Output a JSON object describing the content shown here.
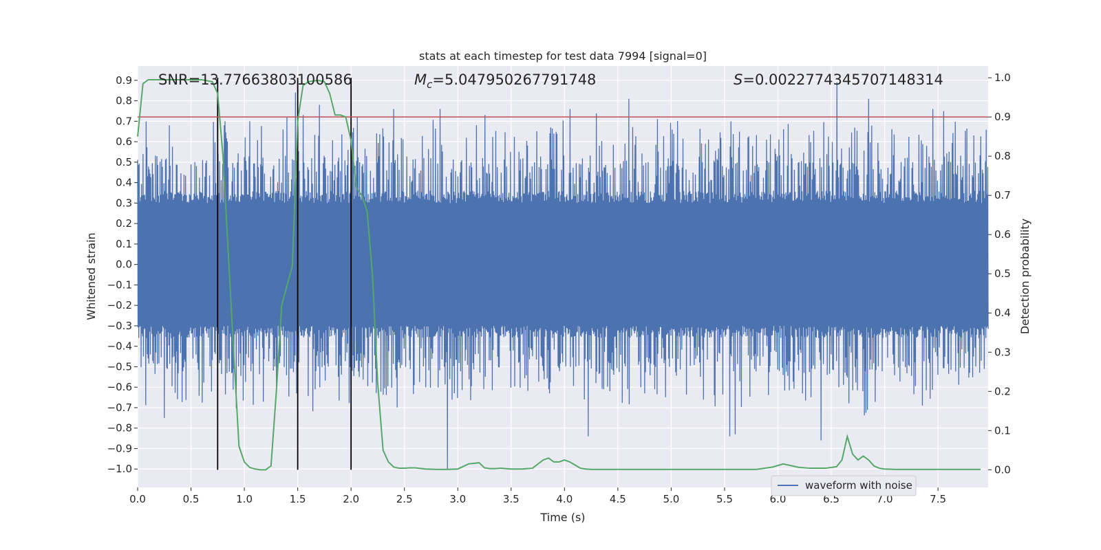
{
  "chart_data": {
    "type": "line",
    "title": "stats at each timestep for test data 7994 [signal=0]",
    "xlabel": "Time (s)",
    "ylabel_left": "Whitened strain",
    "ylabel_right": "Detection probability",
    "xlim": [
      0.0,
      7.97
    ],
    "ylim_left": [
      -1.09,
      0.97
    ],
    "ylim_right": [
      -0.045,
      1.03
    ],
    "grid": true,
    "x_ticks": [
      "0.0",
      "0.5",
      "1.0",
      "1.5",
      "2.0",
      "2.5",
      "3.0",
      "3.5",
      "4.0",
      "4.5",
      "5.0",
      "5.5",
      "6.0",
      "6.5",
      "7.0",
      "7.5"
    ],
    "x_tick_values": [
      0.0,
      0.5,
      1.0,
      1.5,
      2.0,
      2.5,
      3.0,
      3.5,
      4.0,
      4.5,
      5.0,
      5.5,
      6.0,
      6.5,
      7.0,
      7.5
    ],
    "y_left_ticks": [
      "0.9",
      "0.8",
      "0.7",
      "0.6",
      "0.5",
      "0.4",
      "0.3",
      "0.2",
      "0.1",
      "0.0",
      "−0.1",
      "−0.2",
      "−0.3",
      "−0.4",
      "−0.5",
      "−0.6",
      "−0.7",
      "−0.8",
      "−0.9",
      "−1.0"
    ],
    "y_left_tick_values": [
      0.9,
      0.8,
      0.7,
      0.6,
      0.5,
      0.4,
      0.3,
      0.2,
      0.1,
      0.0,
      -0.1,
      -0.2,
      -0.3,
      -0.4,
      -0.5,
      -0.6,
      -0.7,
      -0.8,
      -0.9,
      -1.0
    ],
    "y_right_ticks": [
      "1.0",
      "0.9",
      "0.8",
      "0.7",
      "0.6",
      "0.5",
      "0.4",
      "0.3",
      "0.2",
      "0.1",
      "0.0"
    ],
    "y_right_tick_values": [
      1.0,
      0.9,
      0.8,
      0.7,
      0.6,
      0.5,
      0.4,
      0.3,
      0.2,
      0.1,
      0.0
    ],
    "annotations": {
      "snr": "SNR=13.77663803100586",
      "mc_symbol": "M",
      "mc_sub": "c",
      "mc_value": "=5.047950267791748",
      "s_symbol": "S",
      "s_value": "=0.0022774345707148314"
    },
    "legend": {
      "label": "waveform with noise",
      "position": "bottom-right"
    },
    "threshold": {
      "value": 0.9,
      "axis": "right",
      "color": "#c44e52"
    },
    "vertical_lines": [
      0.75,
      1.5,
      2.0
    ],
    "waveform": {
      "name": "waveform with noise",
      "color": "#4c72b0",
      "duration": 7.97,
      "samples": 2200,
      "base_amplitude": 0.3,
      "peaks": [
        {
          "x": 0.25,
          "y": -0.75
        },
        {
          "x": 0.82,
          "y": 0.7
        },
        {
          "x": 1.05,
          "y": 0.7
        },
        {
          "x": 1.4,
          "y": 0.72
        },
        {
          "x": 1.48,
          "y": 0.84
        },
        {
          "x": 1.55,
          "y": 0.73
        },
        {
          "x": 1.7,
          "y": 0.78
        },
        {
          "x": 2.4,
          "y": 0.76
        },
        {
          "x": 2.83,
          "y": 0.76
        },
        {
          "x": 2.9,
          "y": -1.0
        },
        {
          "x": 3.25,
          "y": 0.73
        },
        {
          "x": 4.05,
          "y": 0.76
        },
        {
          "x": 4.22,
          "y": -0.84
        },
        {
          "x": 4.6,
          "y": 0.81
        },
        {
          "x": 5.55,
          "y": -0.84
        },
        {
          "x": 5.6,
          "y": -0.83
        },
        {
          "x": 6.4,
          "y": -0.86
        },
        {
          "x": 6.55,
          "y": 0.89
        },
        {
          "x": 6.85,
          "y": 0.81
        },
        {
          "x": 7.35,
          "y": -0.69
        },
        {
          "x": 7.45,
          "y": 0.76
        },
        {
          "x": 7.55,
          "y": 0.75
        }
      ]
    },
    "probability": {
      "name": "detection probability",
      "color": "#55a868",
      "x": [
        0.0,
        0.05,
        0.1,
        0.2,
        0.3,
        0.4,
        0.5,
        0.6,
        0.7,
        0.75,
        0.8,
        0.85,
        0.9,
        0.95,
        1.0,
        1.05,
        1.1,
        1.15,
        1.2,
        1.25,
        1.3,
        1.35,
        1.4,
        1.45,
        1.5,
        1.55,
        1.6,
        1.65,
        1.7,
        1.75,
        1.8,
        1.85,
        1.9,
        1.95,
        2.0,
        2.05,
        2.1,
        2.15,
        2.2,
        2.25,
        2.3,
        2.35,
        2.4,
        2.45,
        2.5,
        2.55,
        2.6,
        2.7,
        2.8,
        2.9,
        3.0,
        3.1,
        3.2,
        3.25,
        3.3,
        3.35,
        3.4,
        3.5,
        3.6,
        3.7,
        3.8,
        3.85,
        3.9,
        3.95,
        4.0,
        4.05,
        4.1,
        4.15,
        4.2,
        4.25,
        4.3,
        4.4,
        4.5,
        4.6,
        4.7,
        4.8,
        4.9,
        5.0,
        5.2,
        5.4,
        5.6,
        5.8,
        5.95,
        6.05,
        6.1,
        6.2,
        6.3,
        6.4,
        6.45,
        6.55,
        6.6,
        6.65,
        6.7,
        6.75,
        6.8,
        6.85,
        6.9,
        6.95,
        7.0,
        7.1,
        7.2,
        7.3,
        7.4,
        7.5,
        7.6,
        7.7,
        7.8,
        7.9
      ],
      "y": [
        0.85,
        0.985,
        0.995,
        0.995,
        0.995,
        0.995,
        0.995,
        0.995,
        0.99,
        0.96,
        0.8,
        0.55,
        0.3,
        0.06,
        0.02,
        0.006,
        0.002,
        0.0,
        0.0,
        0.01,
        0.2,
        0.42,
        0.47,
        0.52,
        0.89,
        0.98,
        0.99,
        0.992,
        0.993,
        0.99,
        0.96,
        0.905,
        0.905,
        0.9,
        0.84,
        0.72,
        0.7,
        0.66,
        0.5,
        0.22,
        0.05,
        0.02,
        0.007,
        0.004,
        0.004,
        0.005,
        0.005,
        0.002,
        0.001,
        0.001,
        0.002,
        0.015,
        0.018,
        0.005,
        0.003,
        0.003,
        0.004,
        0.002,
        0.002,
        0.004,
        0.025,
        0.03,
        0.02,
        0.02,
        0.025,
        0.02,
        0.012,
        0.004,
        0.002,
        0.001,
        0.001,
        0.001,
        0.001,
        0.001,
        0.001,
        0.001,
        0.001,
        0.001,
        0.001,
        0.001,
        0.001,
        0.001,
        0.007,
        0.015,
        0.012,
        0.006,
        0.004,
        0.004,
        0.004,
        0.008,
        0.025,
        0.085,
        0.04,
        0.025,
        0.035,
        0.025,
        0.01,
        0.004,
        0.002,
        0.001,
        0.001,
        0.001,
        0.001,
        0.001,
        0.001,
        0.001,
        0.001,
        0.001
      ]
    }
  }
}
